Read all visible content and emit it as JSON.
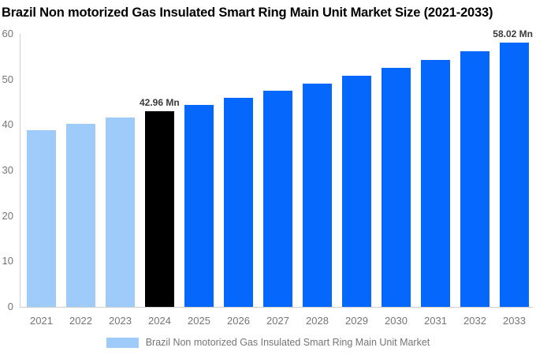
{
  "title": "Brazil Non motorized Gas Insulated Smart Ring Main Unit Market Size (2021-2033)",
  "chart_data": {
    "type": "bar",
    "title": "Brazil Non motorized Gas Insulated Smart Ring Main Unit Market Size (2021-2033)",
    "categories": [
      "2021",
      "2022",
      "2023",
      "2024",
      "2025",
      "2026",
      "2027",
      "2028",
      "2029",
      "2030",
      "2031",
      "2032",
      "2033"
    ],
    "values": [
      38.85,
      40.18,
      41.55,
      42.96,
      44.42,
      45.93,
      47.5,
      49.11,
      50.78,
      52.51,
      54.3,
      56.15,
      58.02
    ],
    "unit": "Mn",
    "series_name": "Brazil Non motorized Gas Insulated Smart Ring Main Unit Market",
    "xlabel": "",
    "ylabel": "",
    "ylim": [
      0,
      60
    ],
    "yticks": [
      0,
      10,
      20,
      30,
      40,
      50,
      60
    ],
    "grid": false,
    "legend_position": "bottom",
    "bar_roles": [
      "historical",
      "historical",
      "historical",
      "current",
      "forecast",
      "forecast",
      "forecast",
      "forecast",
      "forecast",
      "forecast",
      "forecast",
      "forecast",
      "forecast"
    ],
    "annotations": [
      {
        "category": "2024",
        "text": "42.96 Mn"
      },
      {
        "category": "2033",
        "text": "58.02 Mn"
      }
    ],
    "colors": {
      "historical": "#9ECBFA",
      "current": "#000000",
      "forecast": "#0667FD",
      "axis": "#CFCFCF",
      "tick_text": "#757575",
      "annotation_text": "#3A3A3A",
      "title_text": "#000000"
    }
  },
  "legend": {
    "label": "Brazil Non motorized Gas Insulated Smart Ring Main Unit Market",
    "swatch_color": "#9ECBFA"
  }
}
